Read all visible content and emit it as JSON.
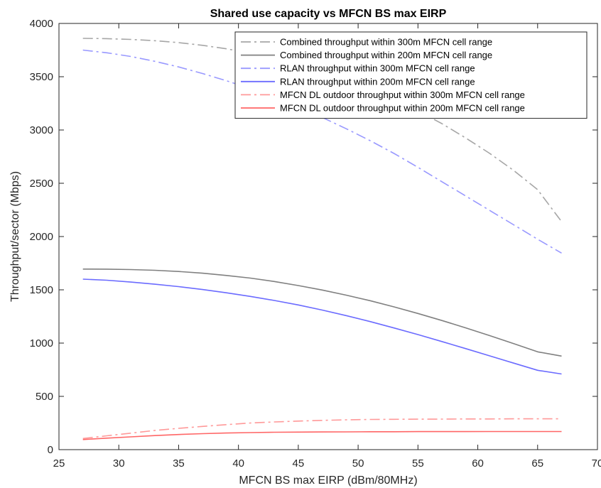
{
  "chart_data": {
    "type": "line",
    "title": "Shared use capacity vs MFCN BS max EIRP",
    "xlabel": "MFCN BS max EIRP (dBm/80MHz)",
    "ylabel": "Throughput/sector (Mbps)",
    "xlim": [
      25,
      70
    ],
    "ylim": [
      0,
      4000
    ],
    "xticks": [
      25,
      30,
      35,
      40,
      45,
      50,
      55,
      60,
      65,
      70
    ],
    "yticks": [
      0,
      500,
      1000,
      1500,
      2000,
      2500,
      3000,
      3500,
      4000
    ],
    "x": [
      27,
      29,
      31,
      33,
      35,
      37,
      39,
      41,
      43,
      45,
      47,
      49,
      51,
      53,
      55,
      57,
      59,
      61,
      63,
      65,
      67
    ],
    "legend_position": "top-right",
    "grid": false,
    "series": [
      {
        "name": "Combined throughput within 300m MFCN cell range",
        "color": "#a6a6a6",
        "dash": "dashdot",
        "values": [
          3860,
          3857,
          3850,
          3838,
          3820,
          3795,
          3762,
          3720,
          3670,
          3612,
          3545,
          3470,
          3385,
          3290,
          3180,
          3060,
          2925,
          2780,
          2620,
          2440,
          2140
        ]
      },
      {
        "name": "Combined throughput within 200m MFCN cell range",
        "color": "#808080",
        "dash": "solid",
        "values": [
          1695,
          1694,
          1690,
          1683,
          1672,
          1656,
          1635,
          1610,
          1578,
          1540,
          1498,
          1450,
          1398,
          1340,
          1278,
          1212,
          1143,
          1070,
          995,
          918,
          878
        ]
      },
      {
        "name": "RLAN throughput within 300m MFCN cell range",
        "color": "#9999ff",
        "dash": "dashdot",
        "values": [
          3750,
          3725,
          3690,
          3645,
          3592,
          3530,
          3462,
          3388,
          3305,
          3215,
          3118,
          3012,
          2900,
          2780,
          2650,
          2515,
          2380,
          2245,
          2110,
          1975,
          1845
        ]
      },
      {
        "name": "RLAN throughput within 200m MFCN cell range",
        "color": "#6b6bff",
        "dash": "solid",
        "values": [
          1600,
          1590,
          1573,
          1553,
          1530,
          1503,
          1472,
          1438,
          1400,
          1358,
          1310,
          1258,
          1202,
          1142,
          1080,
          1015,
          948,
          880,
          812,
          745,
          710
        ]
      },
      {
        "name": "MFCN DL outdoor throughput within 300m MFCN cell range",
        "color": "#ff9999",
        "dash": "dashdot",
        "values": [
          105,
          130,
          155,
          180,
          200,
          218,
          235,
          250,
          260,
          268,
          275,
          280,
          283,
          285,
          286,
          287,
          288,
          288,
          289,
          289,
          290
        ]
      },
      {
        "name": "MFCN DL outdoor throughput within 200m MFCN cell range",
        "color": "#ff6666",
        "dash": "solid",
        "values": [
          95,
          108,
          120,
          132,
          142,
          150,
          156,
          160,
          163,
          165,
          166,
          167,
          168,
          168,
          169,
          169,
          169,
          170,
          170,
          170,
          170
        ]
      }
    ]
  }
}
